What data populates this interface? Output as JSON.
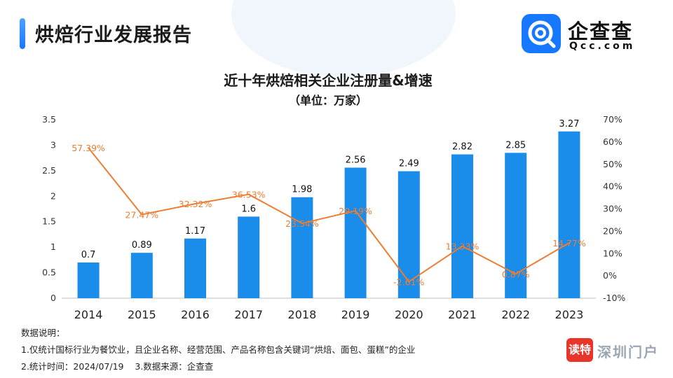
{
  "header": {
    "title": "烘焙行业发展报告"
  },
  "logo": {
    "name": "企查查",
    "sub": "Qcc.com",
    "icon": "qcc-logo-icon"
  },
  "chart_data": {
    "type": "bar",
    "title": "近十年烘焙相关企业注册量&增速",
    "subtitle": "（单位：万家）",
    "categories": [
      "2014",
      "2015",
      "2016",
      "2017",
      "2018",
      "2019",
      "2020",
      "2021",
      "2022",
      "2023"
    ],
    "series": [
      {
        "type": "bar",
        "axis": "left",
        "color": "#1a8cea",
        "values": [
          0.7,
          0.89,
          1.17,
          1.6,
          1.98,
          2.56,
          2.49,
          2.82,
          2.85,
          3.27
        ],
        "labels": [
          "0.7",
          "0.89",
          "1.17",
          "1.6",
          "1.98",
          "2.56",
          "2.49",
          "2.82",
          "2.85",
          "3.27"
        ]
      },
      {
        "type": "line",
        "axis": "right",
        "color": "#ed7d31",
        "values": [
          57.39,
          27.47,
          32.32,
          36.53,
          23.54,
          29.19,
          -2.61,
          13.33,
          0.87,
          14.77
        ],
        "labels": [
          "57.39%",
          "27.47%",
          "32.32%",
          "36.53%",
          "23.54%",
          "29.19%",
          "-2.61%",
          "13.33%",
          "0.87%",
          "14.77%"
        ]
      }
    ],
    "y_left": {
      "min": 0,
      "max": 3.5,
      "ticks": [
        "0",
        "0.5",
        "1",
        "1.5",
        "2",
        "2.5",
        "3",
        "3.5"
      ]
    },
    "y_right": {
      "min": -10,
      "max": 70,
      "ticks": [
        "-10%",
        "0%",
        "10%",
        "20%",
        "30%",
        "40%",
        "50%",
        "60%",
        "70%"
      ]
    },
    "grid": false,
    "legend": "none"
  },
  "notes": {
    "heading": "数据说明：",
    "line1": "1.仅统计国标行业为餐饮业，且企业名称、经营范围、产品名称包含关键词“烘焙、面包、蛋糕”的企业",
    "line2": "2.统计时间：2024/07/19    3.数据来源：企查查"
  },
  "watermark": {
    "badge": "读特",
    "text": "深圳门户"
  }
}
